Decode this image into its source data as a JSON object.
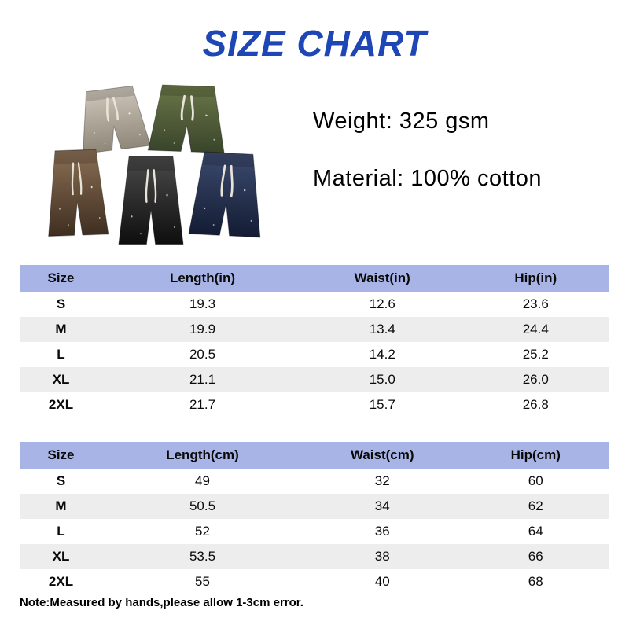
{
  "title": "SIZE CHART",
  "product": {
    "weight": "Weight: 325 gsm",
    "material": "Material: 100% cotton"
  },
  "tables": [
    {
      "unit": "inches",
      "headers": [
        "Size",
        "Length(in)",
        "Waist(in)",
        "Hip(in)"
      ],
      "rows": [
        [
          "S",
          "19.3",
          "12.6",
          "23.6"
        ],
        [
          "M",
          "19.9",
          "13.4",
          "24.4"
        ],
        [
          "L",
          "20.5",
          "14.2",
          "25.2"
        ],
        [
          "XL",
          "21.1",
          "15.0",
          "26.0"
        ],
        [
          "2XL",
          "21.7",
          "15.7",
          "26.8"
        ]
      ]
    },
    {
      "unit": "centimeters",
      "headers": [
        "Size",
        "Length(cm)",
        "Waist(cm)",
        "Hip(cm)"
      ],
      "rows": [
        [
          "S",
          "49",
          "32",
          "60"
        ],
        [
          "M",
          "50.5",
          "34",
          "62"
        ],
        [
          "L",
          "52",
          "36",
          "64"
        ],
        [
          "XL",
          "53.5",
          "38",
          "66"
        ],
        [
          "2XL",
          "55",
          "40",
          "68"
        ]
      ]
    }
  ],
  "note": "Note:Measured by hands,please allow 1-3cm error.",
  "colors": {
    "title": "#1e46b5",
    "table_header_bg": "#a8b4e6",
    "row_alt_bg": "#ededed"
  },
  "shorts": [
    {
      "name": "gray",
      "color_top": "#cdc6ba",
      "color_bottom": "#8f8778"
    },
    {
      "name": "green",
      "color_top": "#6a7648",
      "color_bottom": "#39452a"
    },
    {
      "name": "brown",
      "color_top": "#8a6f55",
      "color_bottom": "#3f2e20"
    },
    {
      "name": "black",
      "color_top": "#4a4a4a",
      "color_bottom": "#0e0e0e"
    },
    {
      "name": "navy",
      "color_top": "#3c4a6e",
      "color_bottom": "#131c33"
    }
  ]
}
